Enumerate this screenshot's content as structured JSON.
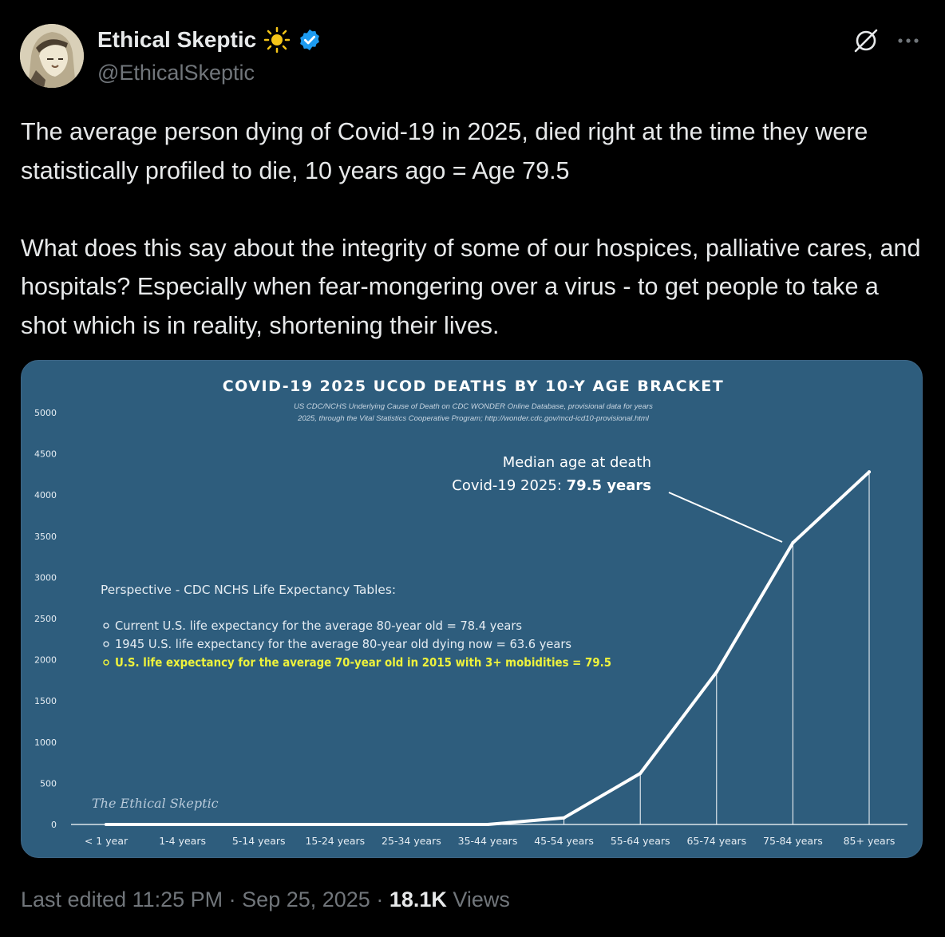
{
  "author": {
    "display_name": "Ethical Skeptic",
    "handle": "@EthicalSkeptic",
    "verified_color": "#1d9bf0",
    "sun_emoji_color": "#f5c518"
  },
  "tweet": {
    "paragraph1": "The average person dying of Covid-19 in 2025, died right at the time they were statistically profiled to die, 10 years ago = Age 79.5",
    "paragraph2": "What does this say about the integrity of some of our hospices, palliative cares, and hospitals? Especially when fear-mongering over a virus - to get people to take a shot which is in reality, shortening their lives."
  },
  "footer": {
    "edited": "Last edited 11:25 PM",
    "sep1": " · ",
    "date": "Sep 25, 2025",
    "sep2": " · ",
    "views_count": "18.1K",
    "views_label": " Views"
  },
  "icons": {
    "grok": "grok-icon",
    "more": "more-icon",
    "verified": "verified-badge-icon",
    "sun": "sun-icon"
  },
  "chart_data": {
    "type": "line",
    "title": "COVID-19 2025 UCOD DEATHS BY 10-Y AGE BRACKET",
    "subtitle_line1": "US CDC/NCHS Underlying Cause of Death on CDC WONDER Online Database, provisional data for years",
    "subtitle_line2": "2025, through the Vital Statistics Cooperative Program; http://wonder.cdc.gov/mcd-icd10-provisional.html",
    "categories": [
      "< 1 year",
      "1-4 years",
      "5-14 years",
      "15-24 years",
      "25-34 years",
      "35-44 years",
      "45-54 years",
      "55-64 years",
      "65-74 years",
      "75-84 years",
      "85+ years"
    ],
    "values": [
      0,
      0,
      0,
      0,
      0,
      0,
      80,
      620,
      1850,
      3420,
      4280
    ],
    "yticks": [
      0,
      500,
      1000,
      1500,
      2000,
      2500,
      3000,
      3500,
      4000,
      4500,
      5000
    ],
    "ylim": [
      0,
      5000
    ],
    "grid": false,
    "colors": {
      "background": "#2e5d7d",
      "line": "#ffffff",
      "highlight": "#eef23c"
    },
    "annotation": {
      "line1": "Median age at death",
      "line2_prefix": "Covid-19 2025: ",
      "line2_bold": "79.5 years"
    },
    "perspective": {
      "heading": "Perspective - CDC NCHS Life Expectancy Tables:",
      "items": [
        "Current U.S. life expectancy for the average 80-year old = 78.4 years",
        "1945 U.S. life expectancy for the average 80-year old dying now = 63.6 years",
        "U.S. life expectancy for the average 70-year old in 2015 with 3+ mobidities = 79.5"
      ]
    },
    "watermark": "The Ethical Skeptic"
  }
}
